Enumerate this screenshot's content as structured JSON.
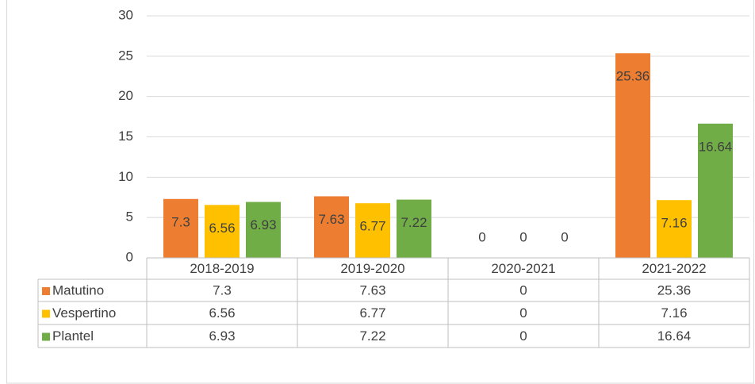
{
  "chart_data": {
    "type": "bar",
    "categories": [
      "2018-2019",
      "2019-2020",
      "2020-2021",
      "2021-2022"
    ],
    "series": [
      {
        "name": "Matutino",
        "color": "#ed7d31",
        "values": [
          7.3,
          7.63,
          0,
          25.36
        ]
      },
      {
        "name": "Vespertino",
        "color": "#ffc000",
        "values": [
          6.56,
          6.77,
          0,
          7.16
        ]
      },
      {
        "name": "Plantel",
        "color": "#70ad47",
        "values": [
          6.93,
          7.22,
          0,
          16.64
        ]
      }
    ],
    "ylim": [
      0,
      30
    ],
    "yticks": [
      0,
      5,
      10,
      15,
      20,
      25,
      30
    ],
    "grid": true,
    "data_table": true
  }
}
